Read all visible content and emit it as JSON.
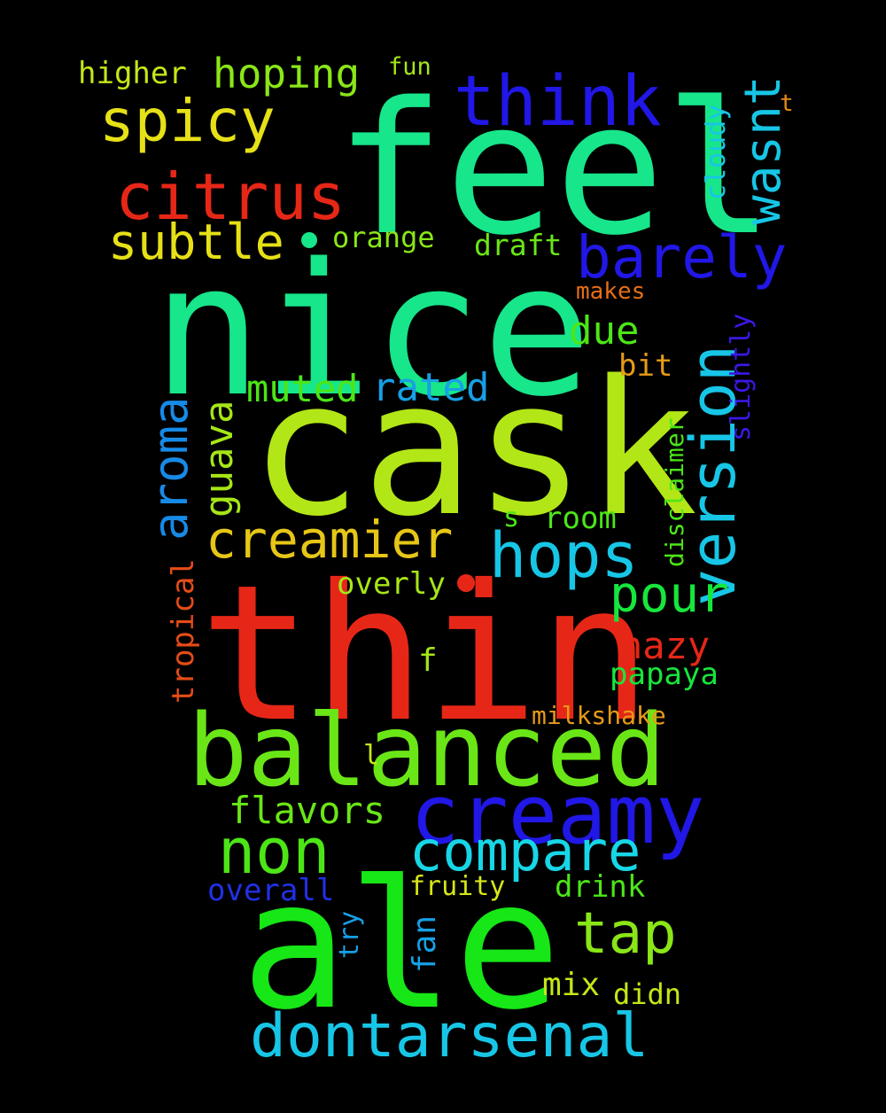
{
  "words": [
    {
      "id": "feel",
      "text": "feel",
      "color": "#17e68a"
    },
    {
      "id": "nice",
      "text": "nice",
      "color": "#17e68a"
    },
    {
      "id": "cask",
      "text": "cask",
      "color": "#b2e617"
    },
    {
      "id": "thin",
      "text": "thin",
      "color": "#e62717"
    },
    {
      "id": "ale",
      "text": "ale",
      "color": "#17e617"
    },
    {
      "id": "balanced",
      "text": "balanced",
      "color": "#6ae617"
    },
    {
      "id": "creamy",
      "text": "creamy",
      "color": "#2117e6"
    },
    {
      "id": "think",
      "text": "think",
      "color": "#2117e6"
    },
    {
      "id": "barely",
      "text": "barely",
      "color": "#2117e6"
    },
    {
      "id": "citrus",
      "text": "citrus",
      "color": "#e62717"
    },
    {
      "id": "spicy",
      "text": "spicy",
      "color": "#e6e017"
    },
    {
      "id": "hoping",
      "text": "hoping",
      "color": "#8ae617"
    },
    {
      "id": "higher",
      "text": "higher",
      "color": "#c6e617"
    },
    {
      "id": "fun",
      "text": "fun",
      "color": "#a6e617"
    },
    {
      "id": "subtle",
      "text": "subtle",
      "color": "#e6e017"
    },
    {
      "id": "orange",
      "text": "orange",
      "color": "#8ae617"
    },
    {
      "id": "draft",
      "text": "draft",
      "color": "#6ae617"
    },
    {
      "id": "makes",
      "text": "makes",
      "color": "#e66f17"
    },
    {
      "id": "t",
      "text": "t",
      "color": "#e68a17"
    },
    {
      "id": "wasnt",
      "text": "wasnt",
      "color": "#17c6e6"
    },
    {
      "id": "cloudy",
      "text": "cloudy",
      "color": "#17c6e6"
    },
    {
      "id": "version",
      "text": "version",
      "color": "#17c6e6"
    },
    {
      "id": "slightly",
      "text": "slightly",
      "color": "#3c17e6"
    },
    {
      "id": "due",
      "text": "due",
      "color": "#4ce617"
    },
    {
      "id": "bit",
      "text": "bit",
      "color": "#e69b17"
    },
    {
      "id": "muted",
      "text": "muted",
      "color": "#4ce617"
    },
    {
      "id": "rated",
      "text": "rated",
      "color": "#17a0e6"
    },
    {
      "id": "aroma",
      "text": "aroma",
      "color": "#178ae6"
    },
    {
      "id": "guava",
      "text": "guava",
      "color": "#a6e617"
    },
    {
      "id": "creamier",
      "text": "creamier",
      "color": "#e6c617"
    },
    {
      "id": "hops",
      "text": "hops",
      "color": "#17c6e6"
    },
    {
      "id": "disclaimer",
      "text": "disclaimer",
      "color": "#4ce617"
    },
    {
      "id": "s",
      "text": "s",
      "color": "#4ce617"
    },
    {
      "id": "room",
      "text": "room",
      "color": "#4ce617"
    },
    {
      "id": "pour",
      "text": "pour",
      "color": "#17e63c"
    },
    {
      "id": "overly",
      "text": "overly",
      "color": "#a6e617"
    },
    {
      "id": "tropical",
      "text": "tropical",
      "color": "#e64c17"
    },
    {
      "id": "hazy",
      "text": "hazy",
      "color": "#e62717"
    },
    {
      "id": "f",
      "text": "f",
      "color": "#a6e617"
    },
    {
      "id": "papaya",
      "text": "papaya",
      "color": "#17e63c"
    },
    {
      "id": "milkshake",
      "text": "milkshake",
      "color": "#e69b17"
    },
    {
      "id": "l",
      "text": "l",
      "color": "#c6e617"
    },
    {
      "id": "flavors",
      "text": "flavors",
      "color": "#6ae617"
    },
    {
      "id": "non",
      "text": "non",
      "color": "#4ce617"
    },
    {
      "id": "compare",
      "text": "compare",
      "color": "#17d6e6"
    },
    {
      "id": "overall",
      "text": "overall",
      "color": "#2130e6"
    },
    {
      "id": "fruity",
      "text": "fruity",
      "color": "#d6e617"
    },
    {
      "id": "drink",
      "text": "drink",
      "color": "#4ce617"
    },
    {
      "id": "tap",
      "text": "tap",
      "color": "#8ae617"
    },
    {
      "id": "try",
      "text": "try",
      "color": "#17a0e6"
    },
    {
      "id": "fan",
      "text": "fan",
      "color": "#17a0e6"
    },
    {
      "id": "mix",
      "text": "mix",
      "color": "#c6e617"
    },
    {
      "id": "didn",
      "text": "didn",
      "color": "#c6e617"
    },
    {
      "id": "dontarsenal",
      "text": "dontarsenal",
      "color": "#17c6e6"
    }
  ]
}
